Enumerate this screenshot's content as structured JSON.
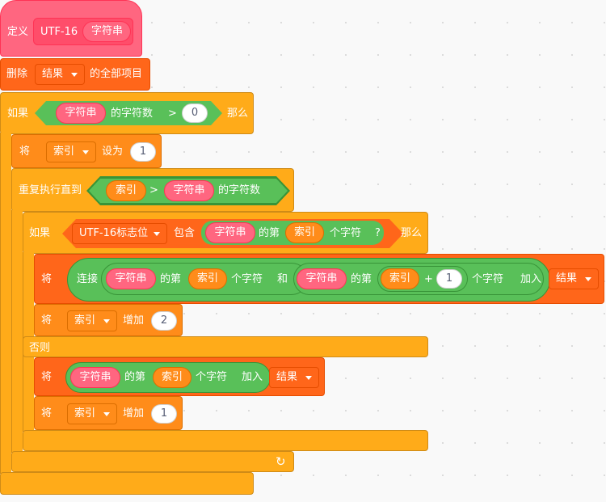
{
  "define": {
    "label": "定义",
    "name": "UTF-16",
    "param": "字符串"
  },
  "delete_all": {
    "label": "删除",
    "list": "结果",
    "suffix": "的全部项目"
  },
  "if1": {
    "label": "如果",
    "then": "那么",
    "reporter": "字符串",
    "length_label": "的字符数",
    "op": ">",
    "value": "0"
  },
  "set_index": {
    "label": "将",
    "var": "索引",
    "to": "设为",
    "value": "1"
  },
  "repeat_until": {
    "label": "重复执行直到",
    "var": "索引",
    "op": ">",
    "reporter": "字符串",
    "length_label": "的字符数"
  },
  "if2": {
    "label": "如果",
    "then": "那么",
    "else": "否则",
    "list": "UTF-16标志位",
    "contains": "包含",
    "reporter": "字符串",
    "nth": "的第",
    "var": "索引",
    "char": "个字符",
    "q": "?"
  },
  "add_join": {
    "label": "将",
    "join": "连接",
    "r1": "字符串",
    "nth1": "的第",
    "var1": "索引",
    "char1": "个字符",
    "and": "和",
    "r2": "字符串",
    "nth2": "的第",
    "var2": "索引",
    "plus": "+",
    "one": "1",
    "char2": "个字符",
    "add": "加入",
    "list": "结果"
  },
  "change2": {
    "label": "将",
    "var": "索引",
    "by": "增加",
    "value": "2"
  },
  "add_char": {
    "label": "将",
    "reporter": "字符串",
    "nth": "的第",
    "var": "索引",
    "char": "个字符",
    "add": "加入",
    "list": "结果"
  },
  "change1": {
    "label": "将",
    "var": "索引",
    "by": "增加",
    "value": "1"
  },
  "colors": {
    "events_hat": "#ff6680",
    "list": "#ff661a",
    "control": "#ffab19",
    "variable": "#ff8c1a",
    "operator": "#59c059"
  },
  "icons": {
    "loop": "loop-arrow-icon",
    "dropdown": "chevron-down-icon"
  }
}
